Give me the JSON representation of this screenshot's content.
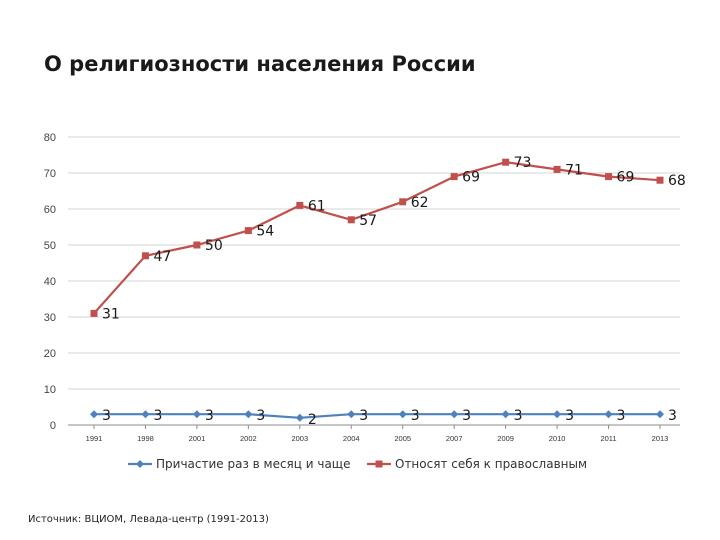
{
  "page": {
    "title": "О религиозности населения России",
    "source": "Источник: ВЦИОМ, Левада-центр (1991-2013)"
  },
  "chart_data": {
    "type": "line",
    "title": "",
    "xlabel": "",
    "ylabel": "",
    "categories": [
      "1991",
      "1998",
      "2001",
      "2002",
      "2003",
      "2004",
      "2005",
      "2007",
      "2009",
      "2010",
      "2011",
      "2013"
    ],
    "ylim": [
      0,
      80
    ],
    "yticks": [
      0,
      10,
      20,
      30,
      40,
      50,
      60,
      70,
      80
    ],
    "grid": true,
    "legend_position": "bottom",
    "series": [
      {
        "name": "Причастие раз в месяц и чаще",
        "values": [
          3,
          3,
          3,
          3,
          2,
          3,
          3,
          3,
          3,
          3,
          3,
          3
        ],
        "color": "#4f81bd",
        "marker": "diamond"
      },
      {
        "name": "Относят себя к православным",
        "values": [
          31,
          47,
          50,
          54,
          61,
          57,
          62,
          69,
          73,
          71,
          69,
          68
        ],
        "color": "#c0504d",
        "marker": "square"
      }
    ]
  }
}
